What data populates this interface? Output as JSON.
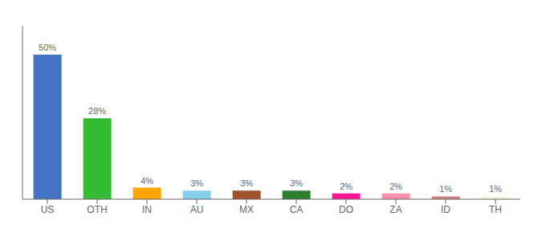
{
  "chart_data": {
    "type": "bar",
    "categories": [
      "US",
      "OTH",
      "IN",
      "AU",
      "MX",
      "CA",
      "DO",
      "ZA",
      "ID",
      "TH"
    ],
    "values": [
      50,
      28,
      4,
      3,
      3,
      3,
      2,
      2,
      1,
      1
    ],
    "value_labels": [
      "50%",
      "28%",
      "4%",
      "3%",
      "3%",
      "3%",
      "2%",
      "2%",
      "1%",
      "1%"
    ],
    "colors": [
      "#4472C4",
      "#33BB33",
      "#FFA500",
      "#87CEEB",
      "#A0522D",
      "#2E7D32",
      "#FF1493",
      "#FF8FB0",
      "#CD8080",
      "#F5F5DC"
    ],
    "ylim": [
      0,
      60
    ],
    "data_labels": true,
    "tick_labels": "x",
    "grid": false
  }
}
